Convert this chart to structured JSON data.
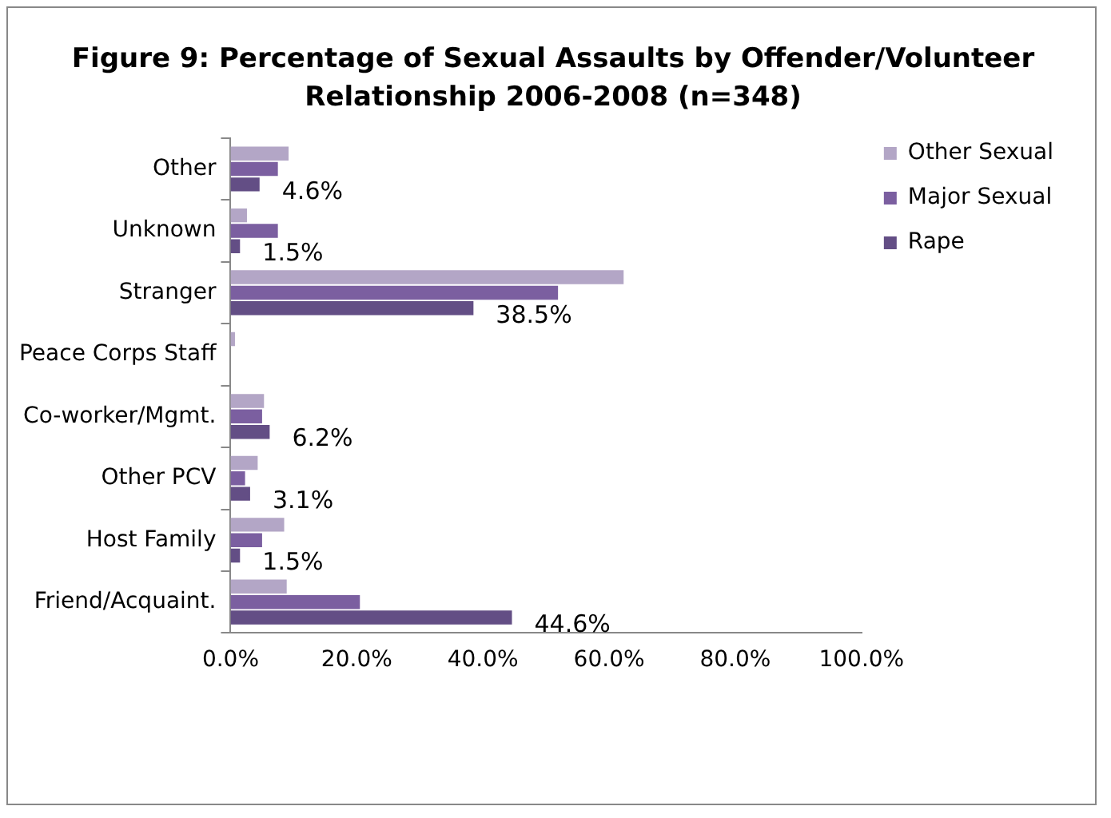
{
  "chart_data": {
    "type": "bar",
    "orientation": "horizontal",
    "title": "Figure 9:  Percentage of Sexual Assaults by Offender/Volunteer Relationship 2006-2008 (n=348)",
    "categories": [
      "Other",
      "Unknown",
      "Stranger",
      "Peace Corps Staff",
      "Co-worker/Mgmt.",
      "Other PCV",
      "Host Family",
      "Friend/Acquaint."
    ],
    "series": [
      {
        "name": "Other Sexual",
        "color": "#b3a6c6",
        "values": [
          9.2,
          2.6,
          62.3,
          0.7,
          5.3,
          4.3,
          8.5,
          8.9
        ]
      },
      {
        "name": "Major Sexual",
        "color": "#7b5fa0",
        "values": [
          7.5,
          7.5,
          51.9,
          0,
          5.0,
          2.3,
          5.0,
          20.5
        ]
      },
      {
        "name": "Rape",
        "color": "#634e85",
        "values": [
          4.6,
          1.5,
          38.5,
          0,
          6.2,
          3.1,
          1.5,
          44.6
        ],
        "value_labels": [
          "4.6%",
          "1.5%",
          "38.5%",
          null,
          "6.2%",
          "3.1%",
          "1.5%",
          "44.6%"
        ]
      }
    ],
    "xlim": [
      0,
      100
    ],
    "xticks": [
      {
        "value": 0,
        "label": "0.0%"
      },
      {
        "value": 20,
        "label": "20.0%"
      },
      {
        "value": 40,
        "label": "40.0%"
      },
      {
        "value": 60,
        "label": "60.0%"
      },
      {
        "value": 80,
        "label": "80.0%"
      },
      {
        "value": 100,
        "label": "100.0%"
      }
    ],
    "grid": false,
    "legend": "right"
  }
}
